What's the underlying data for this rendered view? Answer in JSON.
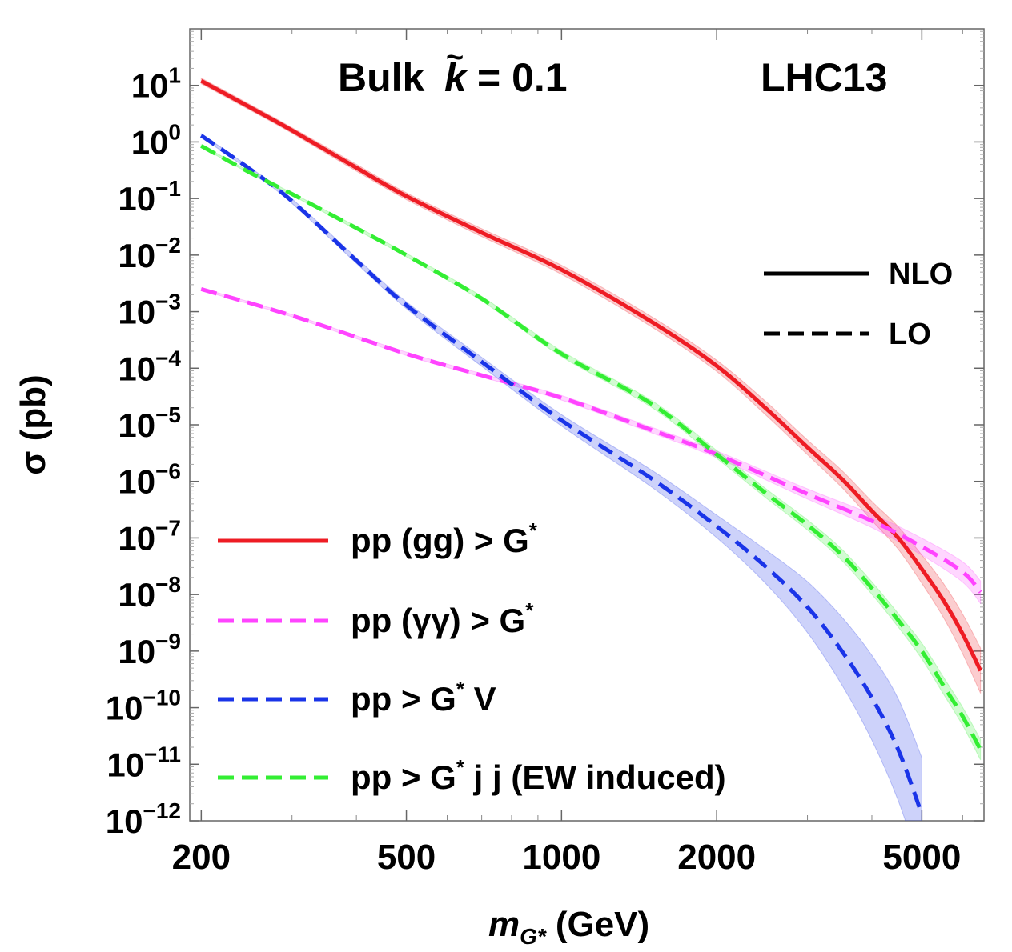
{
  "chart_data": {
    "type": "line",
    "title_left": "Bulk",
    "title_k_symbol": "k",
    "title_k_tilde": "~",
    "title_k_value": "= 0.1",
    "title_right": "LHC13",
    "xlabel_main": "m",
    "xlabel_sub": "G*",
    "xlabel_unit": "(GeV)",
    "ylabel": "σ (pb)",
    "x_scale": "log",
    "y_scale": "log",
    "xlim": [
      190,
      6600
    ],
    "ylim": [
      1e-12,
      100.0
    ],
    "x_ticks": [
      {
        "value": 200,
        "label": "200"
      },
      {
        "value": 500,
        "label": "500"
      },
      {
        "value": 1000,
        "label": "1000"
      },
      {
        "value": 2000,
        "label": "2000"
      },
      {
        "value": 5000,
        "label": "5000"
      }
    ],
    "y_ticks": [
      {
        "value": 10,
        "base": "10",
        "exp": "1"
      },
      {
        "value": 1,
        "base": "10",
        "exp": "0"
      },
      {
        "value": 0.1,
        "base": "10",
        "exp": "−1"
      },
      {
        "value": 0.01,
        "base": "10",
        "exp": "−2"
      },
      {
        "value": 0.001,
        "base": "10",
        "exp": "−3"
      },
      {
        "value": 0.0001,
        "base": "10",
        "exp": "−4"
      },
      {
        "value": 1e-05,
        "base": "10",
        "exp": "−5"
      },
      {
        "value": 1e-06,
        "base": "10",
        "exp": "−6"
      },
      {
        "value": 1e-07,
        "base": "10",
        "exp": "−7"
      },
      {
        "value": 1e-08,
        "base": "10",
        "exp": "−8"
      },
      {
        "value": 1e-09,
        "base": "10",
        "exp": "−9"
      },
      {
        "value": 1e-10,
        "base": "10",
        "exp": "−10"
      },
      {
        "value": 1e-11,
        "base": "10",
        "exp": "−11"
      },
      {
        "value": 1e-12,
        "base": "10",
        "exp": "−12"
      }
    ],
    "style_legend": {
      "position": "right",
      "items": [
        {
          "label": "NLO",
          "style": "solid"
        },
        {
          "label": "LO",
          "style": "dashed"
        }
      ]
    },
    "legend_position": "bottom-left",
    "series": [
      {
        "name": "pp (gg) > G",
        "name_sup": "*",
        "color": "#ee1c24",
        "style": "solid",
        "band_color": "#ee1c24",
        "x": [
          200,
          250,
          300,
          400,
          500,
          700,
          1000,
          1500,
          2000,
          2500,
          3000,
          3500,
          4000,
          4500,
          5000,
          5500,
          6000,
          6500
        ],
        "y": [
          12,
          4.0,
          1.6,
          0.35,
          0.11,
          0.025,
          0.0055,
          0.00065,
          0.00011,
          1.9e-05,
          4e-06,
          1.1e-06,
          3e-07,
          1e-07,
          2.8e-08,
          8e-09,
          2e-09,
          4.5e-10
        ],
        "band": [
          0.05,
          0.05,
          0.05,
          0.06,
          0.06,
          0.07,
          0.08,
          0.09,
          0.1,
          0.12,
          0.13,
          0.15,
          0.17,
          0.2,
          0.25,
          0.3,
          0.35,
          0.4
        ]
      },
      {
        "name": "pp (γγ) > G",
        "name_sup": "*",
        "color": "#ff44ff",
        "style": "dashed",
        "band_color": "#ff44ff",
        "x": [
          200,
          300,
          500,
          700,
          1000,
          1500,
          2000,
          3000,
          4000,
          5000,
          6000,
          6500
        ],
        "y": [
          0.0025,
          0.00085,
          0.00018,
          7.5e-05,
          3e-05,
          8e-06,
          3e-06,
          6e-07,
          2e-07,
          7e-08,
          2.5e-08,
          1.1e-08
        ],
        "band": [
          0.02,
          0.02,
          0.03,
          0.03,
          0.04,
          0.05,
          0.06,
          0.09,
          0.12,
          0.15,
          0.18,
          0.2
        ]
      },
      {
        "name": "pp > G",
        "name_sup": "*",
        "name_suffix": " V",
        "color": "#1a34e8",
        "style": "dashed",
        "band_color": "#1a34e8",
        "x": [
          200,
          250,
          300,
          400,
          500,
          700,
          1000,
          1500,
          2000,
          2500,
          3000,
          3500,
          4000,
          4500,
          5000
        ],
        "y": [
          1.3,
          0.32,
          0.09,
          0.008,
          0.0013,
          0.00013,
          1.2e-05,
          1.1e-06,
          1.6e-07,
          3e-08,
          6e-09,
          1e-09,
          1.5e-10,
          1.8e-11,
          1.3e-12
        ],
        "band": [
          0.03,
          0.03,
          0.04,
          0.05,
          0.06,
          0.08,
          0.1,
          0.15,
          0.2,
          0.3,
          0.45,
          0.6,
          0.75,
          0.9,
          1.0
        ]
      },
      {
        "name": "pp > G",
        "name_sup": "*",
        "name_suffix": " j j (EW induced)",
        "color": "#33ee33",
        "style": "dashed",
        "band_color": "#33ee33",
        "x": [
          200,
          250,
          300,
          400,
          500,
          700,
          1000,
          1500,
          2000,
          2500,
          3000,
          3500,
          4000,
          4500,
          5000,
          5500,
          6000,
          6500
        ],
        "y": [
          0.85,
          0.28,
          0.12,
          0.03,
          0.01,
          0.0017,
          0.00018,
          2.3e-05,
          3e-06,
          6e-07,
          1.7e-07,
          5e-08,
          1.3e-08,
          3.5e-09,
          1e-09,
          2.5e-10,
          7e-11,
          1.8e-11
        ],
        "band": [
          0.02,
          0.02,
          0.02,
          0.03,
          0.03,
          0.04,
          0.05,
          0.06,
          0.07,
          0.08,
          0.09,
          0.1,
          0.11,
          0.12,
          0.14,
          0.15,
          0.16,
          0.18
        ]
      }
    ]
  }
}
